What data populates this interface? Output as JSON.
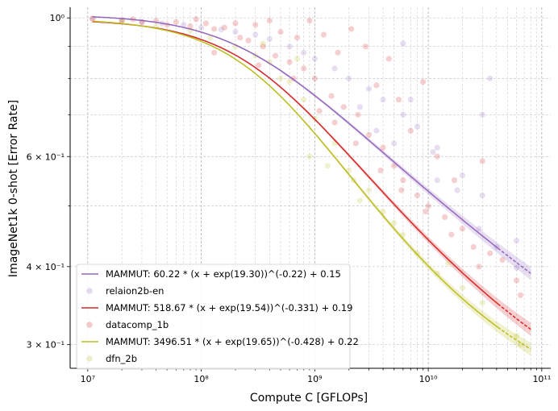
{
  "chart_data": {
    "type": "scatter",
    "xlabel": "Compute C [GFLOPs]",
    "ylabel": "ImageNet1k 0-shot [Error Rate]",
    "xscale": "log",
    "yscale": "log",
    "xlim": [
      7000000.0,
      120000000000.0
    ],
    "ylim": [
      0.275,
      1.04
    ],
    "grid": true,
    "legend_position": "lower-left",
    "x_ticks": [
      {
        "value": 10000000.0,
        "label": "10⁷"
      },
      {
        "value": 100000000.0,
        "label": "10⁸"
      },
      {
        "value": 1000000000.0,
        "label": "10⁹"
      },
      {
        "value": 10000000000.0,
        "label": "10¹⁰"
      },
      {
        "value": 100000000000.0,
        "label": "10¹¹"
      }
    ],
    "y_ticks": [
      {
        "value": 1.0,
        "label": "10⁰"
      },
      {
        "value": 0.6,
        "label": "6 × 10⁻¹"
      },
      {
        "value": 0.4,
        "label": "4 × 10⁻¹"
      },
      {
        "value": 0.3,
        "label": "3 × 10⁻¹"
      }
    ],
    "series": [
      {
        "name": "MAMMUT: 60.22 * (x + exp(19.30))^(-0.22) + 0.15",
        "kind": "fit",
        "color": "#9467bd",
        "A": 60.22,
        "b": 19.3,
        "alpha": 0.22,
        "E": 0.15,
        "x_range": [
          11000000.0,
          80000000000.0
        ]
      },
      {
        "name": "relaion2b-en",
        "kind": "points",
        "color": "#9467bd",
        "points": [
          [
            11000000.0,
            0.998
          ],
          [
            20000000.0,
            0.99
          ],
          [
            30000000.0,
            0.985
          ],
          [
            45000000.0,
            0.98
          ],
          [
            70000000.0,
            0.975
          ],
          [
            100000000.0,
            0.965
          ],
          [
            150000000.0,
            0.958
          ],
          [
            200000000.0,
            0.95
          ],
          [
            300000000.0,
            0.94
          ],
          [
            400000000.0,
            0.925
          ],
          [
            600000000.0,
            0.9
          ],
          [
            800000000.0,
            0.88
          ],
          [
            1000000000.0,
            0.86
          ],
          [
            1500000000.0,
            0.83
          ],
          [
            2000000000.0,
            0.8
          ],
          [
            3000000000.0,
            0.77
          ],
          [
            4000000000.0,
            0.74
          ],
          [
            6000000000.0,
            0.7
          ],
          [
            8000000000.0,
            0.67
          ],
          [
            12000000000.0,
            0.62
          ],
          [
            20000000000.0,
            0.56
          ],
          [
            30000000000.0,
            0.52
          ],
          [
            60000000000.0,
            0.44
          ],
          [
            2500000000.0,
            0.72
          ],
          [
            3500000000.0,
            0.66
          ],
          [
            5000000000.0,
            0.63
          ],
          [
            7000000000.0,
            0.74
          ],
          [
            11000000000.0,
            0.61
          ],
          [
            18000000000.0,
            0.53
          ],
          [
            28000000000.0,
            0.46
          ],
          [
            35000000000.0,
            0.8
          ],
          [
            12000000000.0,
            0.55
          ],
          [
            6000000000.0,
            0.91
          ],
          [
            30000000000.0,
            0.7
          ],
          [
            40000000000.0,
            0.43
          ],
          [
            60000000000.0,
            0.398
          ]
        ]
      },
      {
        "name": "MAMMUT: 518.67 * (x + exp(19.54))^(-0.331) + 0.19",
        "kind": "fit",
        "color": "#d62728",
        "A": 518.67,
        "b": 19.54,
        "alpha": 0.331,
        "E": 0.19,
        "x_range": [
          11000000.0,
          80000000000.0
        ]
      },
      {
        "name": "datacomp_1b",
        "kind": "points",
        "color": "#d62728",
        "points": [
          [
            11000000.0,
            0.997
          ],
          [
            20000000.0,
            0.992
          ],
          [
            25000000.0,
            0.995
          ],
          [
            30000000.0,
            0.985
          ],
          [
            40000000.0,
            0.99
          ],
          [
            50000000.0,
            0.975
          ],
          [
            60000000.0,
            0.985
          ],
          [
            80000000.0,
            0.97
          ],
          [
            90000000.0,
            0.995
          ],
          [
            110000000.0,
            0.98
          ],
          [
            130000000.0,
            0.96
          ],
          [
            160000000.0,
            0.965
          ],
          [
            200000000.0,
            0.98
          ],
          [
            220000000.0,
            0.93
          ],
          [
            260000000.0,
            0.92
          ],
          [
            300000000.0,
            0.975
          ],
          [
            350000000.0,
            0.9
          ],
          [
            400000000.0,
            0.99
          ],
          [
            450000000.0,
            0.87
          ],
          [
            500000000.0,
            0.95
          ],
          [
            600000000.0,
            0.85
          ],
          [
            700000000.0,
            0.93
          ],
          [
            800000000.0,
            0.83
          ],
          [
            900000000.0,
            0.99
          ],
          [
            1000000000.0,
            0.8
          ],
          [
            1200000000.0,
            0.94
          ],
          [
            1400000000.0,
            0.75
          ],
          [
            1600000000.0,
            0.88
          ],
          [
            1800000000.0,
            0.72
          ],
          [
            2100000000.0,
            0.96
          ],
          [
            2400000000.0,
            0.7
          ],
          [
            2800000000.0,
            0.9
          ],
          [
            3000000000.0,
            0.65
          ],
          [
            3500000000.0,
            0.78
          ],
          [
            4000000000.0,
            0.62
          ],
          [
            4500000000.0,
            0.86
          ],
          [
            5000000000.0,
            0.58
          ],
          [
            5500000000.0,
            0.74
          ],
          [
            6000000000.0,
            0.55
          ],
          [
            7000000000.0,
            0.66
          ],
          [
            8000000000.0,
            0.52
          ],
          [
            9000000000.0,
            0.79
          ],
          [
            10000000000.0,
            0.5
          ],
          [
            12000000000.0,
            0.6
          ],
          [
            14000000000.0,
            0.48
          ],
          [
            17000000000.0,
            0.55
          ],
          [
            20000000000.0,
            0.46
          ],
          [
            25000000000.0,
            0.43
          ],
          [
            30000000000.0,
            0.59
          ],
          [
            35000000000.0,
            0.42
          ],
          [
            45000000000.0,
            0.41
          ],
          [
            60000000000.0,
            0.38
          ],
          [
            65000000000.0,
            0.36
          ],
          [
            130000000.0,
            0.88
          ],
          [
            320000000.0,
            0.84
          ],
          [
            650000000.0,
            0.8
          ],
          [
            1100000000.0,
            0.71
          ],
          [
            1500000000.0,
            0.68
          ],
          [
            2300000000.0,
            0.63
          ],
          [
            3800000000.0,
            0.57
          ],
          [
            5800000000.0,
            0.53
          ],
          [
            9500000000.0,
            0.49
          ],
          [
            16000000000.0,
            0.45
          ],
          [
            28000000000.0,
            0.4
          ]
        ]
      },
      {
        "name": "MAMMUT: 3496.51 * (x + exp(19.65))^(-0.428) + 0.22",
        "kind": "fit",
        "color": "#bcbd22",
        "A": 3496.51,
        "b": 19.65,
        "alpha": 0.428,
        "E": 0.22,
        "x_range": [
          11000000.0,
          80000000000.0
        ]
      },
      {
        "name": "dfn_2b",
        "kind": "points",
        "color": "#bcbd22",
        "points": [
          [
            20000000.0,
            0.985
          ],
          [
            40000000.0,
            0.97
          ],
          [
            80000000.0,
            0.955
          ],
          [
            120000000.0,
            0.93
          ],
          [
            200000000.0,
            0.9
          ],
          [
            300000000.0,
            0.87
          ],
          [
            400000000.0,
            0.85
          ],
          [
            500000000.0,
            0.8
          ],
          [
            600000000.0,
            0.79
          ],
          [
            800000000.0,
            0.74
          ],
          [
            1000000000.0,
            0.69
          ],
          [
            1500000000.0,
            0.63
          ],
          [
            2000000000.0,
            0.57
          ],
          [
            3000000000.0,
            0.53
          ],
          [
            4000000000.0,
            0.49
          ],
          [
            6000000000.0,
            0.45
          ],
          [
            8000000000.0,
            0.42
          ],
          [
            12000000000.0,
            0.39
          ],
          [
            20000000000.0,
            0.37
          ],
          [
            30000000000.0,
            0.35
          ],
          [
            60000000000.0,
            0.31
          ],
          [
            65000000000.0,
            0.3
          ],
          [
            900000000.0,
            0.6
          ],
          [
            1300000000.0,
            0.58
          ],
          [
            2200000000.0,
            0.55
          ],
          [
            700000000.0,
            0.86
          ],
          [
            350000000.0,
            0.91
          ],
          [
            2500000000.0,
            0.51
          ],
          [
            5000000000.0,
            0.47
          ],
          [
            15000000000.0,
            0.405
          ]
        ]
      }
    ]
  }
}
